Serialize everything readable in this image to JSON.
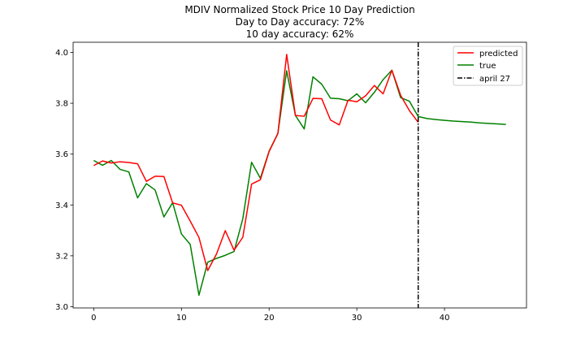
{
  "chart_data": {
    "type": "line",
    "title_lines": [
      "MDIV Normalized Stock Price 10 Day Prediction",
      "Day to Day accuracy: 72%",
      "10 day accuracy: 62%"
    ],
    "xlabel": "",
    "ylabel": "",
    "xlim": [
      -2.35,
      49.35
    ],
    "ylim": [
      2.995,
      4.04
    ],
    "x_ticks": [
      0,
      10,
      20,
      30,
      40
    ],
    "y_ticks": [
      3.0,
      3.2,
      3.4,
      3.6,
      3.8,
      4.0
    ],
    "y_tick_labels": [
      "3.0",
      "3.2",
      "3.4",
      "3.6",
      "3.8",
      "4.0"
    ],
    "grid": false,
    "legend_position": "top-right",
    "series": [
      {
        "name": "predicted",
        "color": "#ff0000",
        "x": [
          0,
          1,
          2,
          3,
          4,
          5,
          6,
          7,
          8,
          9,
          10,
          11,
          12,
          13,
          14,
          15,
          16,
          17,
          18,
          19,
          20,
          21,
          22,
          23,
          24,
          25,
          26,
          27,
          28,
          29,
          30,
          31,
          32,
          33,
          34,
          35,
          36,
          37
        ],
        "values": [
          3.555,
          3.573,
          3.565,
          3.57,
          3.567,
          3.562,
          3.493,
          3.513,
          3.512,
          3.408,
          3.399,
          3.337,
          3.272,
          3.142,
          3.207,
          3.299,
          3.222,
          3.273,
          3.482,
          3.499,
          3.61,
          3.681,
          3.992,
          3.752,
          3.749,
          3.819,
          3.818,
          3.734,
          3.715,
          3.812,
          3.806,
          3.829,
          3.87,
          3.837,
          3.93,
          3.831,
          3.771,
          3.725
        ]
      },
      {
        "name": "true",
        "color": "#008000",
        "x": [
          0,
          1,
          2,
          3,
          4,
          5,
          6,
          7,
          8,
          9,
          10,
          11,
          12,
          13,
          14,
          15,
          16,
          17,
          18,
          19,
          20,
          21,
          22,
          23,
          24,
          25,
          26,
          27,
          28,
          29,
          30,
          31,
          32,
          33,
          34,
          35,
          36,
          37,
          38,
          39,
          40,
          41,
          42,
          43,
          44,
          45,
          46,
          47
        ],
        "values": [
          3.575,
          3.556,
          3.575,
          3.54,
          3.53,
          3.428,
          3.484,
          3.459,
          3.353,
          3.409,
          3.286,
          3.245,
          3.045,
          3.175,
          3.19,
          3.202,
          3.217,
          3.346,
          3.568,
          3.505,
          3.612,
          3.682,
          3.928,
          3.752,
          3.699,
          3.904,
          3.875,
          3.82,
          3.818,
          3.81,
          3.837,
          3.802,
          3.843,
          3.893,
          3.93,
          3.822,
          3.808,
          3.748,
          3.74,
          3.736,
          3.733,
          3.73,
          3.728,
          3.726,
          3.723,
          3.721,
          3.719,
          3.717
        ]
      }
    ],
    "vlines": [
      {
        "name": "april 27",
        "x": 37,
        "color": "#000000",
        "style": "dashdot"
      }
    ],
    "legend_entries": [
      "predicted",
      "true",
      "april 27"
    ]
  }
}
